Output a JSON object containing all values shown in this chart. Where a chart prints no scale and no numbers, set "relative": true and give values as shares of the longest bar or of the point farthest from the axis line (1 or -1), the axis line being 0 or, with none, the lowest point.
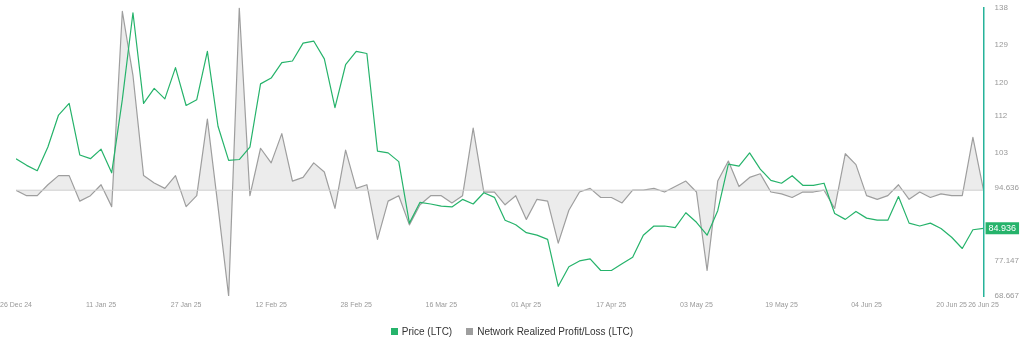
{
  "chart_data": [
    {
      "type": "line",
      "x": [
        "2024-12-26",
        "2024-12-28",
        "2024-12-30",
        "2025-01-01",
        "2025-01-03",
        "2025-01-05",
        "2025-01-07",
        "2025-01-09",
        "2025-01-11",
        "2025-01-13",
        "2025-01-15",
        "2025-01-17",
        "2025-01-19",
        "2025-01-21",
        "2025-01-23",
        "2025-01-25",
        "2025-01-27",
        "2025-01-29",
        "2025-01-31",
        "2025-02-02",
        "2025-02-04",
        "2025-02-06",
        "2025-02-08",
        "2025-02-10",
        "2025-02-12",
        "2025-02-14",
        "2025-02-16",
        "2025-02-18",
        "2025-02-20",
        "2025-02-22",
        "2025-02-24",
        "2025-02-26",
        "2025-02-28",
        "2025-03-02",
        "2025-03-04",
        "2025-03-06",
        "2025-03-08",
        "2025-03-10",
        "2025-03-12",
        "2025-03-14",
        "2025-03-16",
        "2025-03-18",
        "2025-03-20",
        "2025-03-22",
        "2025-03-24",
        "2025-03-26",
        "2025-03-28",
        "2025-03-30",
        "2025-04-01",
        "2025-04-03",
        "2025-04-05",
        "2025-04-07",
        "2025-04-09",
        "2025-04-11",
        "2025-04-13",
        "2025-04-15",
        "2025-04-17",
        "2025-04-19",
        "2025-04-21",
        "2025-04-23",
        "2025-04-25",
        "2025-04-27",
        "2025-04-29",
        "2025-05-01",
        "2025-05-03",
        "2025-05-05",
        "2025-05-07",
        "2025-05-09",
        "2025-05-11",
        "2025-05-13",
        "2025-05-15",
        "2025-05-17",
        "2025-05-19",
        "2025-05-21",
        "2025-05-23",
        "2025-05-25",
        "2025-05-27",
        "2025-05-29",
        "2025-05-31",
        "2025-06-02",
        "2025-06-04",
        "2025-06-06",
        "2025-06-08",
        "2025-06-10",
        "2025-06-12",
        "2025-06-14",
        "2025-06-16",
        "2025-06-18",
        "2025-06-20",
        "2025-06-22",
        "2025-06-24",
        "2025-06-26"
      ],
      "series": [
        {
          "name": "Price (LTC)",
          "color": "#26b36b",
          "values": [
            101.7,
            100.1,
            98.8,
            104.5,
            112.2,
            115.0,
            102.6,
            101.7,
            104.0,
            98.3,
            115.9,
            136.8,
            115.0,
            118.6,
            116.1,
            123.6,
            114.5,
            115.9,
            127.5,
            109.5,
            101.3,
            101.5,
            104.5,
            119.7,
            121.1,
            124.8,
            125.2,
            129.5,
            130.0,
            125.7,
            114.0,
            124.3,
            127.5,
            127.0,
            103.5,
            103.1,
            101.0,
            86.2,
            91.2,
            90.8,
            90.3,
            90.1,
            91.9,
            90.8,
            93.5,
            92.4,
            86.9,
            85.8,
            83.9,
            83.3,
            82.3,
            71.0,
            75.7,
            77.1,
            77.6,
            74.8,
            74.8,
            76.4,
            78.0,
            83.3,
            85.5,
            85.5,
            85.1,
            88.7,
            86.4,
            83.3,
            89.2,
            100.4,
            99.9,
            103.1,
            99.2,
            96.5,
            95.8,
            97.6,
            95.3,
            95.3,
            95.8,
            88.5,
            87.1,
            89.0,
            87.4,
            86.9,
            86.9,
            92.6,
            86.2,
            85.5,
            86.2,
            84.9,
            82.8,
            80.1,
            84.6,
            84.936
          ]
        }
      ],
      "xlim": [
        "2024-12-26",
        "2025-06-26"
      ],
      "xticks": [
        {
          "value": "2024-12-26",
          "label": "26 Dec 24"
        },
        {
          "value": "2025-01-11",
          "label": "11 Jan 25"
        },
        {
          "value": "2025-01-27",
          "label": "27 Jan 25"
        },
        {
          "value": "2025-02-12",
          "label": "12 Feb 25"
        },
        {
          "value": "2025-02-28",
          "label": "28 Feb 25"
        },
        {
          "value": "2025-03-16",
          "label": "16 Mar 25"
        },
        {
          "value": "2025-04-01",
          "label": "01 Apr 25"
        },
        {
          "value": "2025-04-17",
          "label": "17 Apr 25"
        },
        {
          "value": "2025-05-03",
          "label": "03 May 25"
        },
        {
          "value": "2025-05-19",
          "label": "19 May 25"
        },
        {
          "value": "2025-06-04",
          "label": "04 Jun 25"
        },
        {
          "value": "2025-06-20",
          "label": "20 Jun 25"
        },
        {
          "value": "2025-06-26",
          "label": "26 Jun 25"
        }
      ],
      "ylim": [
        68.667,
        138
      ],
      "yticks": [
        68.667,
        77.147,
        94.636,
        103,
        112,
        120,
        129,
        138
      ],
      "annotations": [
        {
          "text": "84.936",
          "x": "2025-06-26",
          "y": 84.936
        }
      ],
      "legend": "bottom",
      "grid": false,
      "marker": "none",
      "line_style": "solid"
    },
    {
      "type": "area",
      "relative": true,
      "x": [
        "2024-12-26",
        "2024-12-28",
        "2024-12-30",
        "2025-01-01",
        "2025-01-03",
        "2025-01-05",
        "2025-01-07",
        "2025-01-09",
        "2025-01-11",
        "2025-01-13",
        "2025-01-15",
        "2025-01-17",
        "2025-01-19",
        "2025-01-21",
        "2025-01-23",
        "2025-01-25",
        "2025-01-27",
        "2025-01-29",
        "2025-01-31",
        "2025-02-02",
        "2025-02-04",
        "2025-02-06",
        "2025-02-08",
        "2025-02-10",
        "2025-02-12",
        "2025-02-14",
        "2025-02-16",
        "2025-02-18",
        "2025-02-20",
        "2025-02-22",
        "2025-02-24",
        "2025-02-26",
        "2025-02-28",
        "2025-03-02",
        "2025-03-04",
        "2025-03-06",
        "2025-03-08",
        "2025-03-10",
        "2025-03-12",
        "2025-03-14",
        "2025-03-16",
        "2025-03-18",
        "2025-03-20",
        "2025-03-22",
        "2025-03-24",
        "2025-03-26",
        "2025-03-28",
        "2025-03-30",
        "2025-04-01",
        "2025-04-03",
        "2025-04-05",
        "2025-04-07",
        "2025-04-09",
        "2025-04-11",
        "2025-04-13",
        "2025-04-15",
        "2025-04-17",
        "2025-04-19",
        "2025-04-21",
        "2025-04-23",
        "2025-04-25",
        "2025-04-27",
        "2025-04-29",
        "2025-05-01",
        "2025-05-03",
        "2025-05-05",
        "2025-05-07",
        "2025-05-09",
        "2025-05-11",
        "2025-05-13",
        "2025-05-15",
        "2025-05-17",
        "2025-05-19",
        "2025-05-21",
        "2025-05-23",
        "2025-05-25",
        "2025-05-27",
        "2025-05-29",
        "2025-05-31",
        "2025-06-02",
        "2025-06-04",
        "2025-06-06",
        "2025-06-08",
        "2025-06-10",
        "2025-06-12",
        "2025-06-14",
        "2025-06-16",
        "2025-06-18",
        "2025-06-20",
        "2025-06-22",
        "2025-06-24",
        "2025-06-26"
      ],
      "series": [
        {
          "name": "Network Realized Profit/Loss (LTC)",
          "color": "#9e9e9e",
          "values": [
            0,
            -0.03,
            -0.03,
            0.03,
            0.08,
            0.08,
            -0.06,
            -0.03,
            0.03,
            -0.09,
            0.98,
            0.63,
            0.08,
            0.04,
            0.01,
            0.08,
            -0.09,
            -0.03,
            0.39,
            -0.09,
            -0.58,
            1,
            -0.03,
            0.23,
            0.15,
            0.31,
            0.05,
            0.07,
            0.15,
            0.1,
            -0.1,
            0.22,
            0.01,
            0.03,
            -0.27,
            -0.06,
            -0.03,
            -0.19,
            -0.08,
            -0.03,
            -0.03,
            -0.07,
            -0.03,
            0.34,
            -0.01,
            -0.01,
            -0.08,
            -0.03,
            -0.16,
            -0.05,
            -0.06,
            -0.29,
            -0.11,
            -0.01,
            0.01,
            -0.04,
            -0.04,
            -0.07,
            0,
            0,
            0.01,
            -0.01,
            0.02,
            0.05,
            -0.01,
            -0.44,
            0.05,
            0.16,
            0.02,
            0.07,
            0.09,
            -0.01,
            -0.02,
            -0.04,
            -0.01,
            -0.01,
            0,
            -0.1,
            0.2,
            0.14,
            -0.03,
            -0.05,
            -0.03,
            0.03,
            -0.05,
            -0.01,
            -0.04,
            -0.02,
            -0.03,
            -0.03,
            0.29,
            0
          ]
        }
      ],
      "xlim": [
        "2024-12-26",
        "2025-06-26"
      ],
      "legend": "bottom",
      "grid": false,
      "marker": "none",
      "line_style": "solid"
    }
  ]
}
